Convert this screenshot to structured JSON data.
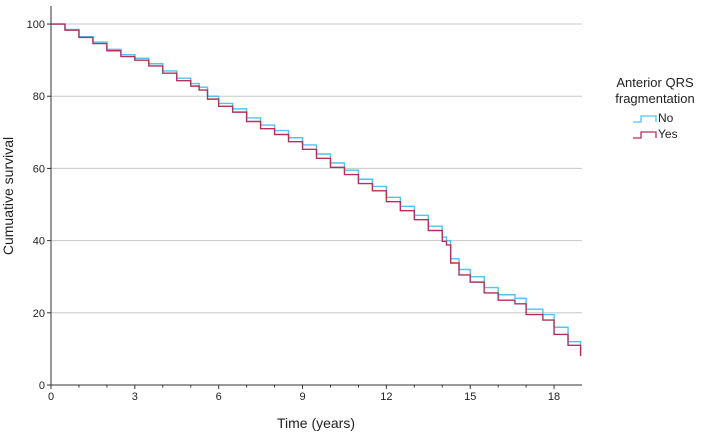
{
  "chart_data": {
    "type": "line",
    "step": true,
    "title": "",
    "xlabel": "Time (years)",
    "ylabel": "Cumuative survival",
    "xlim": [
      0,
      19
    ],
    "ylim": [
      0,
      105
    ],
    "xticks": [
      0,
      3,
      6,
      9,
      12,
      15,
      18
    ],
    "xminor": [
      1,
      2,
      4,
      5,
      7,
      8,
      10,
      11,
      13,
      14,
      16,
      17
    ],
    "yticks": [
      0,
      20,
      40,
      60,
      80,
      100
    ],
    "xtick_labels": [
      "0",
      "3",
      "6",
      "9",
      "12",
      "15",
      "18"
    ],
    "ytick_labels": [
      "0",
      "20",
      "40",
      "60",
      "80",
      "100"
    ],
    "grid": "horizontal",
    "legend": {
      "title_lines": [
        "Anterior QRS",
        "fragmentation"
      ],
      "placement": "right"
    },
    "series": [
      {
        "name": "No",
        "color": "#4fc3f7",
        "x": [
          0,
          0.5,
          1,
          1.5,
          2,
          2.5,
          3,
          3.5,
          4,
          4.5,
          5,
          5.3,
          5.6,
          6,
          6.5,
          7,
          7.5,
          8,
          8.5,
          9,
          9.5,
          10,
          10.5,
          11,
          11.5,
          12,
          12.5,
          13,
          13.5,
          14,
          14.15,
          14.3,
          14.6,
          15,
          15.5,
          16,
          16.6,
          17,
          17.6,
          18,
          18.5,
          18.95
        ],
        "y": [
          100,
          98.5,
          96.5,
          95,
          93,
          91.5,
          90.5,
          89,
          87,
          85,
          83.5,
          82.5,
          80,
          78,
          76.5,
          74,
          72,
          70.5,
          68.5,
          66.5,
          64,
          61.5,
          59.5,
          57,
          55,
          52,
          49.5,
          47,
          44,
          41,
          40,
          35,
          32,
          30,
          27,
          25,
          24,
          21,
          19.5,
          16,
          12,
          9
        ]
      },
      {
        "name": "Yes",
        "color": "#b5305a",
        "x": [
          0,
          0.5,
          1,
          1.5,
          2,
          2.5,
          3,
          3.5,
          4,
          4.5,
          5,
          5.3,
          5.6,
          6,
          6.5,
          7,
          7.5,
          8,
          8.5,
          9,
          9.5,
          10,
          10.5,
          11,
          11.5,
          12,
          12.5,
          13,
          13.5,
          14,
          14.15,
          14.3,
          14.6,
          15,
          15.5,
          16,
          16.6,
          17,
          17.6,
          18,
          18.5,
          18.95
        ],
        "y": [
          100,
          98.3,
          96.3,
          94.6,
          92.6,
          91,
          90,
          88.4,
          86.4,
          84.3,
          82.8,
          81.7,
          79.2,
          77.2,
          75.6,
          73,
          71,
          69.4,
          67.4,
          65.3,
          62.8,
          60.3,
          58.3,
          55.8,
          53.8,
          50.8,
          48.3,
          45.8,
          42.8,
          39.8,
          38.8,
          33.8,
          30.5,
          28.5,
          25.5,
          23.5,
          22.5,
          19.5,
          18,
          14,
          11,
          8
        ]
      }
    ]
  }
}
